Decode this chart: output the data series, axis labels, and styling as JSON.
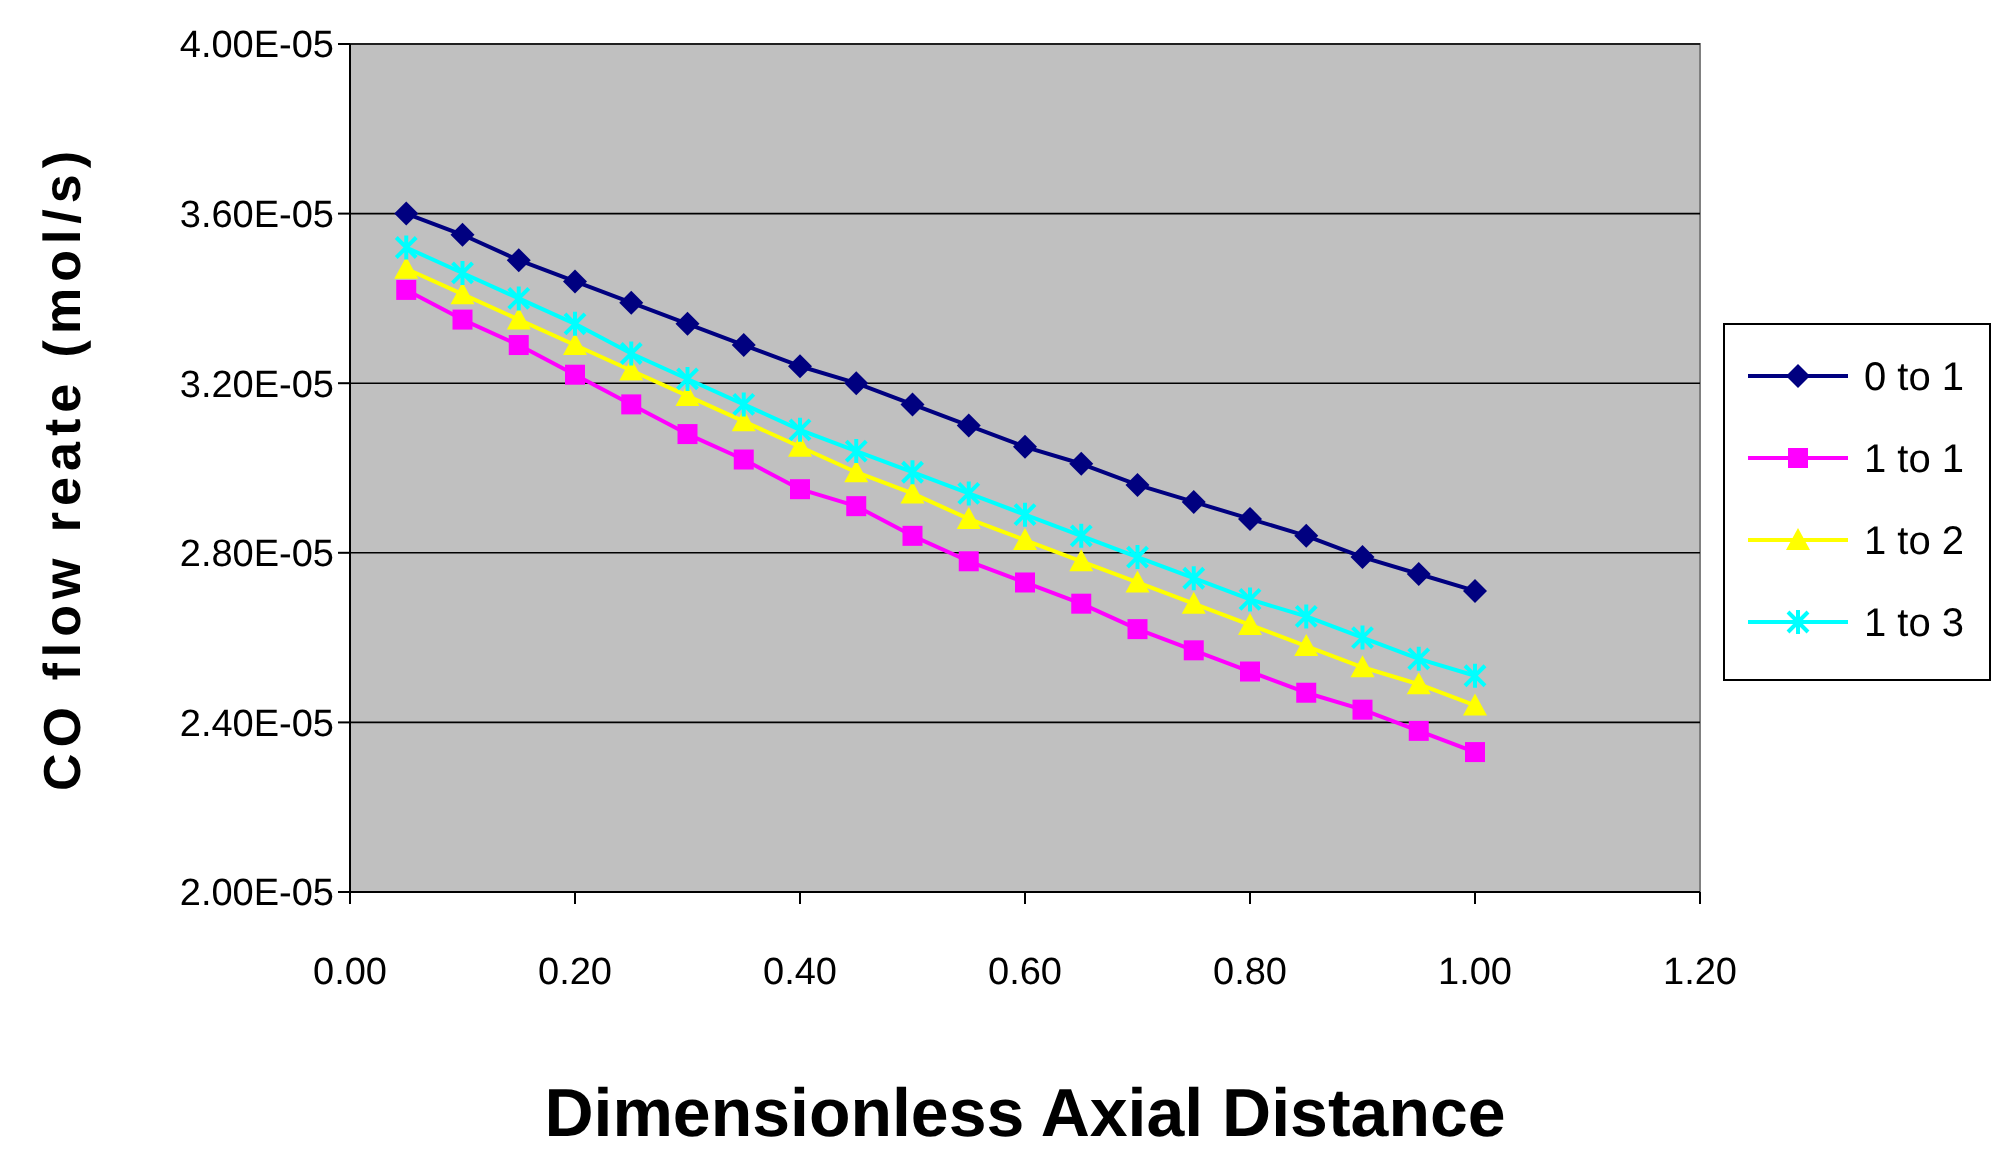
{
  "chart_data": {
    "type": "line",
    "xlabel": "Dimensionless Axial Distance",
    "ylabel": "CO flow reate (mol/s)",
    "x": [
      0.05,
      0.1,
      0.15,
      0.2,
      0.25,
      0.3,
      0.35,
      0.4,
      0.45,
      0.5,
      0.55,
      0.6,
      0.65,
      0.7,
      0.75,
      0.8,
      0.85,
      0.9,
      0.95,
      1.0
    ],
    "series": [
      {
        "name": "0 to 1",
        "color": "#000080",
        "marker": "diamond",
        "values": [
          3.6e-05,
          3.55e-05,
          3.49e-05,
          3.44e-05,
          3.39e-05,
          3.34e-05,
          3.29e-05,
          3.24e-05,
          3.2e-05,
          3.15e-05,
          3.1e-05,
          3.05e-05,
          3.01e-05,
          2.96e-05,
          2.92e-05,
          2.88e-05,
          2.84e-05,
          2.79e-05,
          2.75e-05,
          2.71e-05
        ]
      },
      {
        "name": "1 to 1",
        "color": "#ff00ff",
        "marker": "square",
        "values": [
          3.42e-05,
          3.35e-05,
          3.29e-05,
          3.22e-05,
          3.15e-05,
          3.08e-05,
          3.02e-05,
          2.95e-05,
          2.91e-05,
          2.84e-05,
          2.78e-05,
          2.73e-05,
          2.68e-05,
          2.62e-05,
          2.57e-05,
          2.52e-05,
          2.47e-05,
          2.43e-05,
          2.38e-05,
          2.33e-05
        ]
      },
      {
        "name": "1 to 2",
        "color": "#ffff00",
        "marker": "triangle",
        "values": [
          3.47e-05,
          3.41e-05,
          3.35e-05,
          3.29e-05,
          3.23e-05,
          3.17e-05,
          3.11e-05,
          3.05e-05,
          2.99e-05,
          2.94e-05,
          2.88e-05,
          2.83e-05,
          2.78e-05,
          2.73e-05,
          2.68e-05,
          2.63e-05,
          2.58e-05,
          2.53e-05,
          2.49e-05,
          2.44e-05
        ]
      },
      {
        "name": "1 to 3",
        "color": "#00ffff",
        "marker": "cross",
        "values": [
          3.52e-05,
          3.46e-05,
          3.4e-05,
          3.34e-05,
          3.27e-05,
          3.21e-05,
          3.15e-05,
          3.09e-05,
          3.04e-05,
          2.99e-05,
          2.94e-05,
          2.89e-05,
          2.84e-05,
          2.79e-05,
          2.74e-05,
          2.69e-05,
          2.65e-05,
          2.6e-05,
          2.55e-05,
          2.51e-05
        ]
      }
    ],
    "xlim": [
      0,
      1.2
    ],
    "xticks": [
      {
        "value": 0,
        "label": "0.00"
      },
      {
        "value": 0.2,
        "label": "0.20"
      },
      {
        "value": 0.4,
        "label": "0.40"
      },
      {
        "value": 0.6,
        "label": "0.60"
      },
      {
        "value": 0.8,
        "label": "0.80"
      },
      {
        "value": 1.0,
        "label": "1.00"
      },
      {
        "value": 1.2,
        "label": "1.20"
      }
    ],
    "ylim": [
      2e-05,
      4e-05
    ],
    "yticks": [
      {
        "value": 2e-05,
        "label": "2.00E-05"
      },
      {
        "value": 2.4e-05,
        "label": "2.40E-05"
      },
      {
        "value": 2.8e-05,
        "label": "2.80E-05"
      },
      {
        "value": 3.2e-05,
        "label": "3.20E-05"
      },
      {
        "value": 3.6e-05,
        "label": "3.60E-05"
      },
      {
        "value": 4e-05,
        "label": "4.00E-05"
      }
    ],
    "grid": "y",
    "legend": "right",
    "line_style": "solid"
  }
}
